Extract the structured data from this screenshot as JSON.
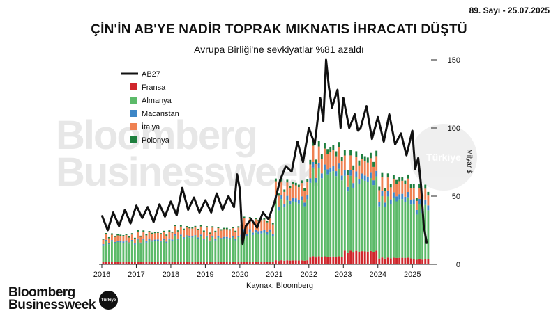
{
  "header": {
    "issue": "89. Sayı - 25.07.2025"
  },
  "chart_data": {
    "type": "bar",
    "title": "ÇİN'İN AB'YE NADİR TOPRAK MIKNATIS İHRACATI DÜŞTÜ",
    "subtitle": "Avrupa Birliği'ne sevkiyatlar %81 azaldı",
    "ylabel": "Milyar $",
    "ylim": [
      0,
      150
    ],
    "yticks": [
      0,
      50,
      100,
      150
    ],
    "x_tick_labels": [
      "2016",
      "2017",
      "2018",
      "2019",
      "2020",
      "2021",
      "2022",
      "2023",
      "2024",
      "2025"
    ],
    "grid": false,
    "legend_position": "top-left",
    "source": "Kaynak: Bloomberg",
    "stack_order": [
      "Fransa",
      "Almanya",
      "Macaristan",
      "İtalya",
      "Polonya"
    ],
    "line_series": {
      "name": "AB27",
      "color": "#111111",
      "points": [
        [
          2016.0,
          36
        ],
        [
          2016.17,
          25
        ],
        [
          2016.33,
          38
        ],
        [
          2016.5,
          28
        ],
        [
          2016.67,
          40
        ],
        [
          2016.83,
          30
        ],
        [
          2017.0,
          43
        ],
        [
          2017.17,
          34
        ],
        [
          2017.33,
          42
        ],
        [
          2017.5,
          31
        ],
        [
          2017.67,
          44
        ],
        [
          2017.83,
          35
        ],
        [
          2018.0,
          46
        ],
        [
          2018.17,
          36
        ],
        [
          2018.33,
          56
        ],
        [
          2018.5,
          40
        ],
        [
          2018.67,
          49
        ],
        [
          2018.83,
          38
        ],
        [
          2019.0,
          47
        ],
        [
          2019.17,
          38
        ],
        [
          2019.33,
          52
        ],
        [
          2019.5,
          40
        ],
        [
          2019.67,
          50
        ],
        [
          2019.83,
          42
        ],
        [
          2019.92,
          66
        ],
        [
          2020.0,
          55
        ],
        [
          2020.08,
          15
        ],
        [
          2020.17,
          28
        ],
        [
          2020.33,
          33
        ],
        [
          2020.5,
          27
        ],
        [
          2020.67,
          38
        ],
        [
          2020.83,
          33
        ],
        [
          2021.0,
          45
        ],
        [
          2021.17,
          62
        ],
        [
          2021.33,
          72
        ],
        [
          2021.5,
          68
        ],
        [
          2021.67,
          90
        ],
        [
          2021.83,
          75
        ],
        [
          2022.0,
          100
        ],
        [
          2022.17,
          88
        ],
        [
          2022.33,
          122
        ],
        [
          2022.42,
          105
        ],
        [
          2022.5,
          150
        ],
        [
          2022.58,
          130
        ],
        [
          2022.67,
          115
        ],
        [
          2022.83,
          128
        ],
        [
          2022.92,
          100
        ],
        [
          2023.0,
          122
        ],
        [
          2023.17,
          100
        ],
        [
          2023.33,
          110
        ],
        [
          2023.42,
          98
        ],
        [
          2023.5,
          100
        ],
        [
          2023.67,
          116
        ],
        [
          2023.83,
          92
        ],
        [
          2024.0,
          108
        ],
        [
          2024.17,
          90
        ],
        [
          2024.33,
          110
        ],
        [
          2024.5,
          88
        ],
        [
          2024.67,
          96
        ],
        [
          2024.83,
          80
        ],
        [
          2025.0,
          98
        ],
        [
          2025.08,
          70
        ],
        [
          2025.17,
          78
        ],
        [
          2025.25,
          58
        ],
        [
          2025.33,
          28
        ],
        [
          2025.42,
          15
        ]
      ]
    },
    "series": [
      {
        "name": "Fransa",
        "color": "#d0262c"
      },
      {
        "name": "Almanya",
        "color": "#5cba69"
      },
      {
        "name": "Macaristan",
        "color": "#3d86c6"
      },
      {
        "name": "İtalya",
        "color": "#ef8152"
      },
      {
        "name": "Polonya",
        "color": "#1e7f3e"
      }
    ],
    "series_values_by_year": {
      "2016": {
        "Fransa": 2,
        "Almanya": 15,
        "Macaristan": 1,
        "İtalya": 4,
        "Polonya": 1
      },
      "2017": {
        "Fransa": 2,
        "Almanya": 16,
        "Macaristan": 1,
        "İtalya": 5,
        "Polonya": 1
      },
      "2018": {
        "Fransa": 2,
        "Almanya": 19,
        "Macaristan": 1,
        "İtalya": 6,
        "Polonya": 1
      },
      "2019": {
        "Fransa": 2,
        "Almanya": 18,
        "Macaristan": 1,
        "İtalya": 6,
        "Polonya": 1
      },
      "2020": {
        "Fransa": 2,
        "Almanya": 22,
        "Macaristan": 2,
        "İtalya": 8,
        "Polonya": 1
      },
      "2021": {
        "Fransa": 3,
        "Almanya": 45,
        "Macaristan": 3,
        "İtalya": 10,
        "Polonya": 2
      },
      "2022": {
        "Fransa": 6,
        "Almanya": 65,
        "Macaristan": 4,
        "İtalya": 12,
        "Polonya": 4
      },
      "2023": {
        "Fransa": 10,
        "Almanya": 55,
        "Macaristan": 4,
        "İtalya": 11,
        "Polonya": 4
      },
      "2024": {
        "Fransa": 5,
        "Almanya": 45,
        "Macaristan": 4,
        "İtalya": 10,
        "Polonya": 3
      },
      "2025": {
        "Fransa": 4,
        "Almanya": 40,
        "Macaristan": 4,
        "İtalya": 8,
        "Polonya": 3
      }
    },
    "legend": [
      {
        "name": "AB27",
        "kind": "line",
        "color": "#111111"
      },
      {
        "name": "Fransa",
        "kind": "box",
        "color": "#d0262c"
      },
      {
        "name": "Almanya",
        "kind": "box",
        "color": "#5cba69"
      },
      {
        "name": "Macaristan",
        "kind": "box",
        "color": "#3d86c6"
      },
      {
        "name": "İtalya",
        "kind": "box",
        "color": "#ef8152"
      },
      {
        "name": "Polonya",
        "kind": "box",
        "color": "#1e7f3e"
      }
    ]
  },
  "watermark": {
    "line1": "Bloomberg",
    "line2": "Businessweek",
    "badge": "Türkiye"
  },
  "brand": {
    "line1": "Bloomberg",
    "line2": "Businessweek",
    "badge": "Türkiye"
  }
}
